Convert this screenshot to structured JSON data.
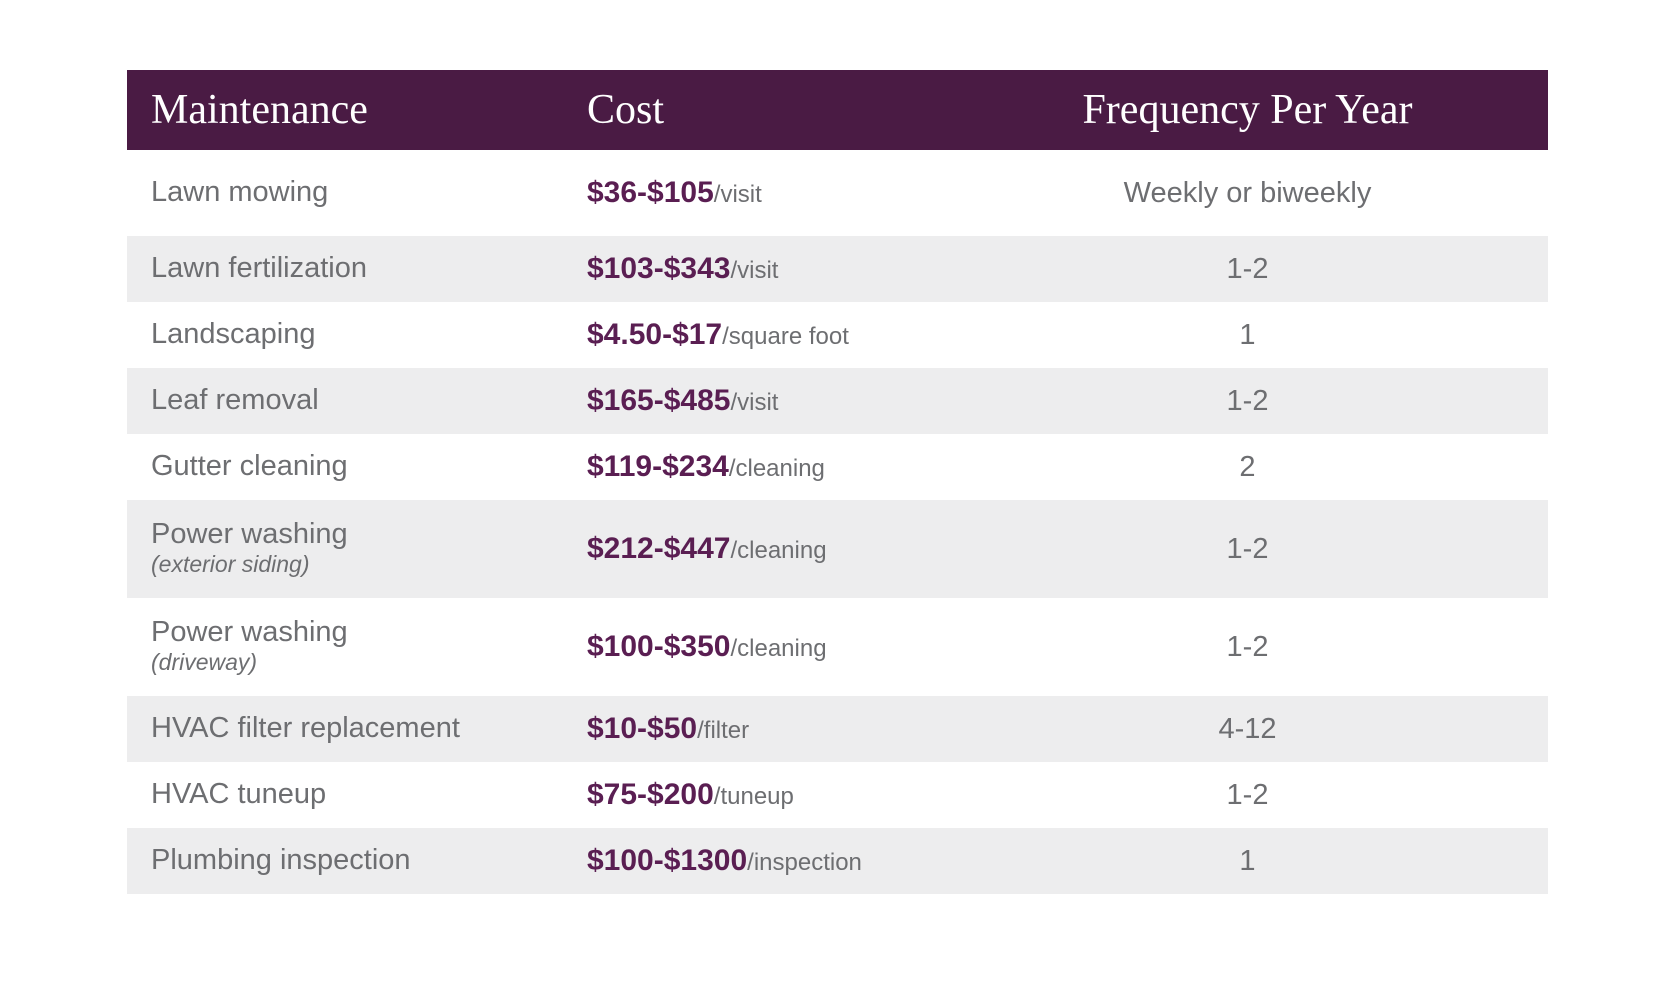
{
  "chart_data": {
    "type": "table",
    "columns": [
      "Maintenance",
      "Cost",
      "Frequency Per Year"
    ],
    "rows": [
      {
        "maintenance": "Lawn mowing",
        "sub": "",
        "cost": "$36-$105",
        "unit": "/visit",
        "frequency": "Weekly or biweekly"
      },
      {
        "maintenance": "Lawn fertilization",
        "sub": "",
        "cost": "$103-$343",
        "unit": "/visit",
        "frequency": "1-2"
      },
      {
        "maintenance": "Landscaping",
        "sub": "",
        "cost": "$4.50-$17",
        "unit": "/square foot",
        "frequency": "1"
      },
      {
        "maintenance": "Leaf removal",
        "sub": "",
        "cost": "$165-$485",
        "unit": "/visit",
        "frequency": "1-2"
      },
      {
        "maintenance": "Gutter cleaning",
        "sub": "",
        "cost": "$119-$234",
        "unit": "/cleaning",
        "frequency": "2"
      },
      {
        "maintenance": "Power washing",
        "sub": "(exterior siding)",
        "cost": "$212-$447",
        "unit": "/cleaning",
        "frequency": "1-2"
      },
      {
        "maintenance": "Power washing",
        "sub": "(driveway)",
        "cost": "$100-$350",
        "unit": "/cleaning",
        "frequency": "1-2"
      },
      {
        "maintenance": "HVAC filter replacement",
        "sub": "",
        "cost": "$10-$50",
        "unit": "/filter",
        "frequency": "4-12"
      },
      {
        "maintenance": "HVAC tuneup",
        "sub": "",
        "cost": "$75-$200",
        "unit": "/tuneup",
        "frequency": "1-2"
      },
      {
        "maintenance": "Plumbing inspection",
        "sub": "",
        "cost": "$100-$1300",
        "unit": "/inspection",
        "frequency": "1"
      }
    ]
  },
  "colors": {
    "header_bg": "#4a1b44",
    "header_text": "#ffffff",
    "cost_text": "#5a1e52",
    "body_text": "#6d6e71",
    "alt_row_bg": "#ededee",
    "row_bg": "#ffffff"
  }
}
